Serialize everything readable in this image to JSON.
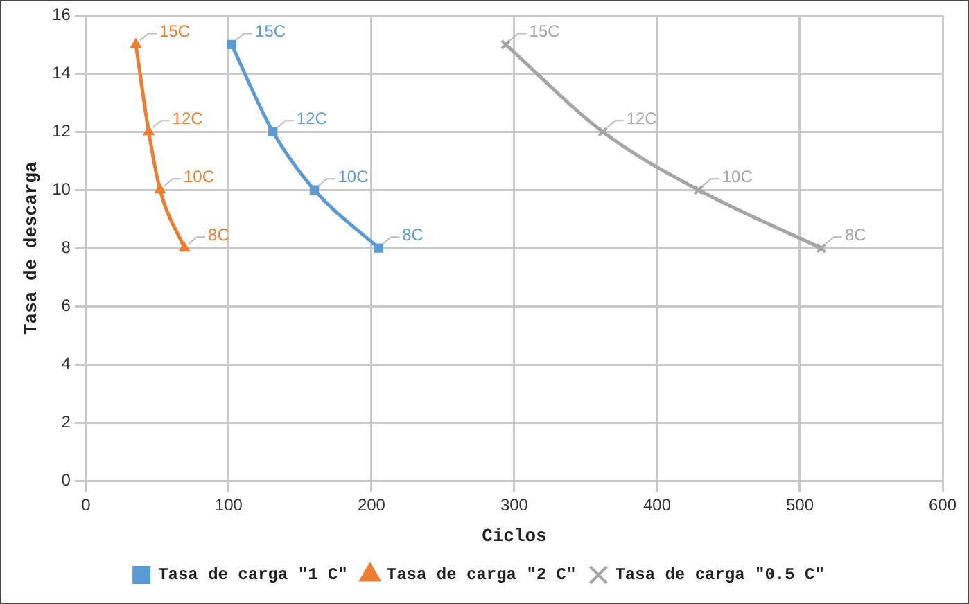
{
  "chart_data": {
    "type": "line",
    "xlabel": "Ciclos",
    "ylabel": "Tasa de descarga",
    "xlim": [
      0,
      600
    ],
    "xticks": [
      0,
      100,
      200,
      300,
      400,
      500,
      600
    ],
    "ylim": [
      0,
      16
    ],
    "yticks": [
      0,
      2,
      4,
      6,
      8,
      10,
      12,
      14,
      16
    ],
    "grid": true,
    "legend": "bottom",
    "series": [
      {
        "name": "Tasa de carga \"1 C\"",
        "color": "#5b9bd5",
        "marker": "square",
        "x": [
          102,
          131,
          160,
          205
        ],
        "values": [
          15,
          12,
          10,
          8
        ],
        "value_labels": [
          "15C",
          "12C",
          "10C",
          "8C"
        ]
      },
      {
        "name": "Tasa de carga \"2 C\"",
        "color": "#ed7d31",
        "marker": "triangle",
        "x": [
          35,
          44,
          52,
          69
        ],
        "values": [
          15,
          12,
          10,
          8
        ],
        "value_labels": [
          "15C",
          "12C",
          "10C",
          "8C"
        ]
      },
      {
        "name": "Tasa de carga \"0.5 C\"",
        "color": "#a5a5a5",
        "marker": "cross",
        "x": [
          294,
          362,
          429,
          515
        ],
        "values": [
          15,
          12,
          10,
          8
        ],
        "value_labels": [
          "15C",
          "12C",
          "10C",
          "8C"
        ]
      }
    ]
  }
}
